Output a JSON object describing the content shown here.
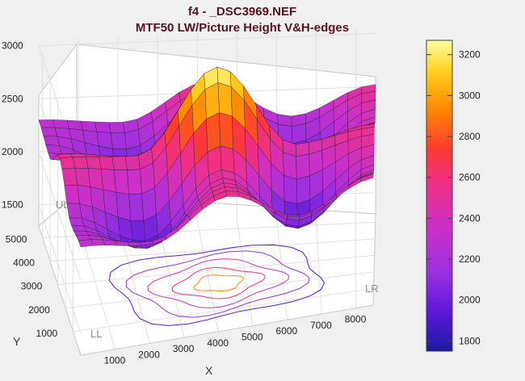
{
  "window": {
    "title_line1": "f4 - _DSC3969.NEF",
    "title_line2": "MTF50 LW/Picture Height   V&H-edges"
  },
  "chart_data": {
    "type": "surface3d",
    "title": "f4 - _DSC3969.NEF",
    "subtitle": "MTF50 LW/Picture Height   V&H-edges",
    "xlabel": "X",
    "ylabel": "Y",
    "zlabel": "",
    "x_ticks": [
      1000,
      2000,
      3000,
      4000,
      5000,
      6000,
      7000,
      8000
    ],
    "y_ticks": [
      1000,
      2000,
      3000,
      4000,
      5000
    ],
    "z_ticks": [
      1500,
      2000,
      2500,
      3000
    ],
    "xlim": [
      0,
      8500
    ],
    "ylim": [
      0,
      5500
    ],
    "zlim": [
      1300,
      3050
    ],
    "grid": true,
    "corner_labels": [
      "UL",
      "LL",
      "LR"
    ],
    "colorbar": {
      "ticks": [
        1800,
        2000,
        2200,
        2400,
        2600,
        2800,
        3000,
        3200
      ],
      "range": [
        1750,
        3270
      ],
      "colormap": [
        "#1a1aa0",
        "#5a18d8",
        "#9830e0",
        "#cc30c8",
        "#f03080",
        "#ff3a30",
        "#ff8a00",
        "#ffd020",
        "#ffffa0"
      ]
    },
    "surface": {
      "x": [
        0,
        2125,
        4250,
        6375,
        8500
      ],
      "y": [
        0,
        1375,
        2750,
        4125,
        5500
      ],
      "z": [
        [
          2320,
          2230,
          2560,
          2250,
          2500
        ],
        [
          2250,
          1930,
          2500,
          1920,
          2380
        ],
        [
          2550,
          2500,
          3260,
          2460,
          2550
        ],
        [
          2260,
          1940,
          2500,
          1880,
          2400
        ],
        [
          2300,
          2250,
          2600,
          2250,
          2520
        ]
      ]
    }
  }
}
